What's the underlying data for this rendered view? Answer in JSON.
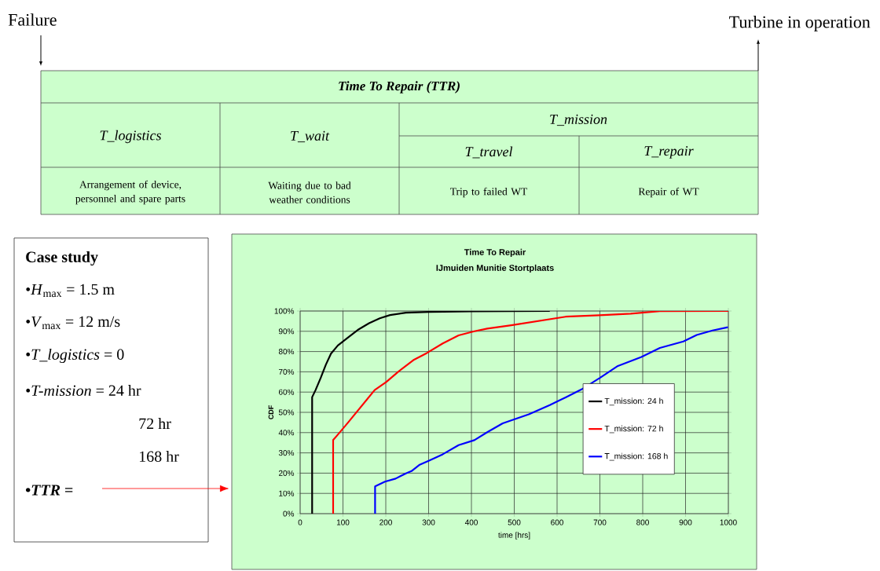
{
  "chart_data": {
    "type": "line",
    "title": "Time To Repair",
    "subtitle": "IJmuiden Munitie Stortplaats",
    "xlabel": "time [hrs]",
    "ylabel": "CDF",
    "xlim": [
      0,
      1000
    ],
    "xticks": [
      0,
      100,
      200,
      300,
      400,
      500,
      600,
      700,
      800,
      900,
      1000
    ],
    "ylim": [
      0,
      100
    ],
    "yticks": [
      {
        "value": 0,
        "label": "0%"
      },
      {
        "value": 10,
        "label": "10%"
      },
      {
        "value": 20,
        "label": "20%"
      },
      {
        "value": 30,
        "label": "30%"
      },
      {
        "value": 40,
        "label": "40%"
      },
      {
        "value": 50,
        "label": "50%"
      },
      {
        "value": 60,
        "label": "60%"
      },
      {
        "value": 70,
        "label": "70%"
      },
      {
        "value": 80,
        "label": "80%"
      },
      {
        "value": 90,
        "label": "90%"
      },
      {
        "value": 100,
        "label": "100%"
      }
    ],
    "grid": true,
    "legend": "right",
    "marker": "none",
    "line_style": "solid",
    "series": [
      {
        "name": "T_mission: 24 h",
        "color": "#000000",
        "x": [
          28,
          28,
          36,
          48,
          60,
          72,
          88,
          112,
          137,
          161,
          186,
          210,
          247,
          302,
          400,
          583
        ],
        "values": [
          0,
          57.5,
          61,
          67,
          73.5,
          79,
          83,
          87,
          91,
          94,
          96.4,
          98,
          99.2,
          99.6,
          99.8,
          100
        ]
      },
      {
        "name": "T_mission: 72 h",
        "color": "#ff0000",
        "x": [
          77,
          77,
          88,
          112,
          143,
          174,
          201,
          229,
          266,
          296,
          333,
          370,
          407,
          437,
          493,
          620,
          699,
          772,
          840,
          1000
        ],
        "values": [
          0,
          36.3,
          39,
          45,
          53,
          61,
          65,
          70,
          76,
          79.3,
          84,
          88,
          90,
          91.3,
          93,
          97.2,
          97.9,
          98.7,
          99.9,
          100
        ]
      },
      {
        "name": "T_mission: 168 h",
        "color": "#0000ff",
        "x": [
          175,
          175,
          198,
          223,
          247,
          260,
          278,
          302,
          333,
          370,
          407,
          437,
          473,
          534,
          583,
          620,
          657,
          700,
          742,
          797,
          840,
          895,
          926,
          963,
          999
        ],
        "values": [
          0,
          13.5,
          15.8,
          17.3,
          19.9,
          21,
          24,
          26.3,
          29.3,
          33.8,
          36.3,
          40.2,
          44.6,
          49,
          53.6,
          57.4,
          61.3,
          67,
          72.9,
          77.3,
          81.8,
          85,
          88.2,
          90.4,
          92
        ]
      }
    ],
    "annotations": [
      "Failure",
      "Turbine in operation",
      "Time To Repair (TTR)",
      "T_logistics",
      "T_wait",
      "T_mission",
      "T_travel",
      "T_repair",
      "Arrangement of device, personnel and spare parts",
      "Waiting due to bad weather conditions",
      "Trip to failed WT",
      "Repair of WT",
      "Case study",
      "•*H*$_{max}$ = 1.5 m",
      "•*V*$_{max}$ = 12 m/s",
      "•*T_logistics* = 0",
      "•*T-mission* = 24 hr",
      "72 hr",
      "168 hr",
      "•*TTR* ="
    ]
  }
}
